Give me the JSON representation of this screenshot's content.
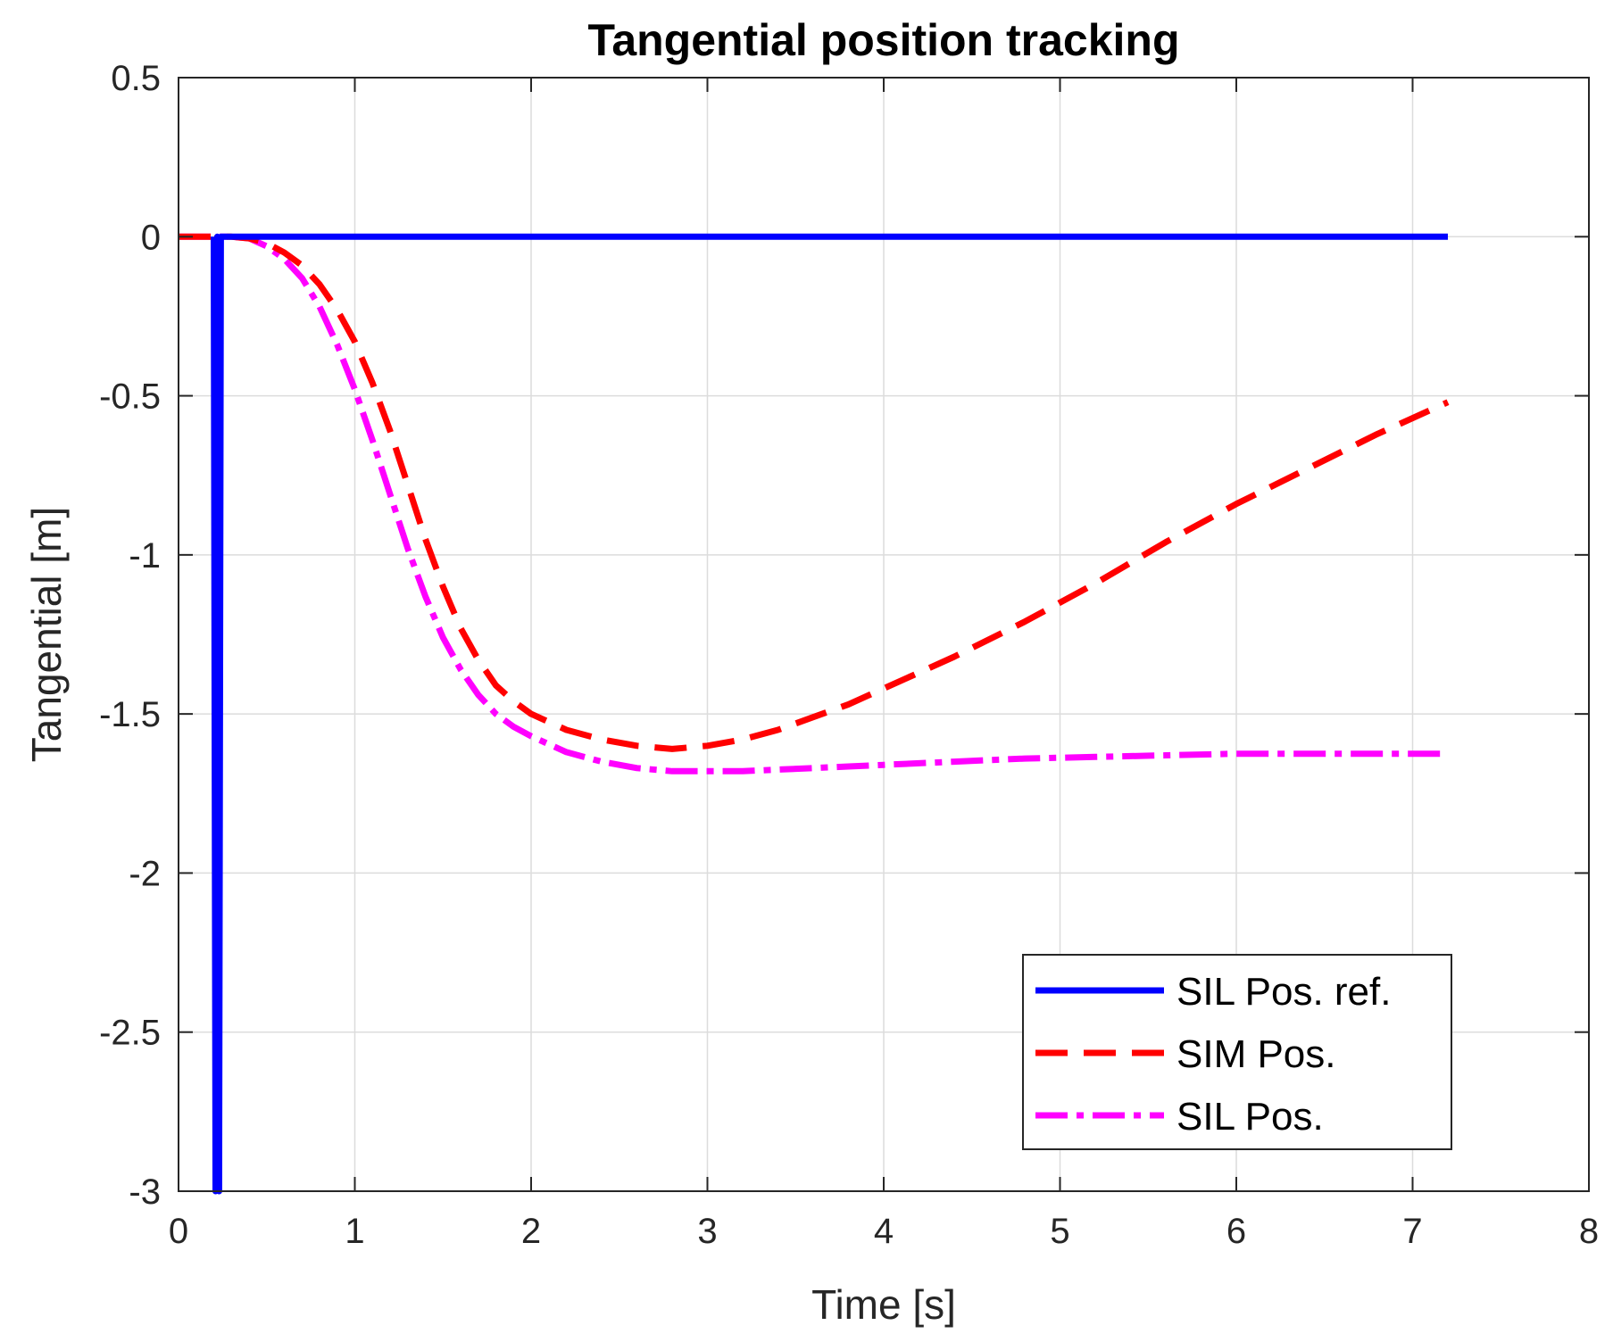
{
  "chart_data": {
    "type": "line",
    "title": "Tangential position tracking",
    "xlabel": "Time [s]",
    "ylabel": "Tangential [m]",
    "xlim": [
      0,
      8
    ],
    "ylim": [
      -3,
      0.5
    ],
    "xticks": [
      0,
      1,
      2,
      3,
      4,
      5,
      6,
      7,
      8
    ],
    "xtick_labels": [
      "0",
      "1",
      "2",
      "3",
      "4",
      "5",
      "6",
      "7",
      "8"
    ],
    "yticks": [
      0.5,
      0,
      -0.5,
      -1,
      -1.5,
      -2,
      -2.5,
      -3
    ],
    "ytick_labels": [
      "0.5",
      "0",
      "-0.5",
      "-1",
      "-1.5",
      "-2",
      "-2.5",
      "-3"
    ],
    "grid": true,
    "legend_position": "bottom-right",
    "series": [
      {
        "name": "SIL Pos. ref.",
        "style": "solid",
        "color": "#0000ff",
        "x": [
          0.2,
          0.21,
          0.22,
          0.23,
          0.24,
          7.2
        ],
        "y": [
          0,
          -3,
          0,
          -3,
          0,
          0
        ]
      },
      {
        "name": "SIM Pos.",
        "style": "dashed",
        "color": "#ff0000",
        "x": [
          0,
          0.3,
          0.4,
          0.5,
          0.6,
          0.7,
          0.8,
          0.9,
          1.0,
          1.1,
          1.2,
          1.3,
          1.4,
          1.5,
          1.6,
          1.7,
          1.8,
          1.9,
          2.0,
          2.2,
          2.4,
          2.6,
          2.8,
          3.0,
          3.2,
          3.4,
          3.6,
          3.8,
          4.0,
          4.4,
          4.8,
          5.2,
          5.6,
          6.0,
          6.4,
          6.8,
          7.2
        ],
        "y": [
          0,
          0,
          -0.005,
          -0.02,
          -0.05,
          -0.09,
          -0.15,
          -0.23,
          -0.33,
          -0.46,
          -0.61,
          -0.78,
          -0.95,
          -1.1,
          -1.23,
          -1.33,
          -1.41,
          -1.46,
          -1.5,
          -1.55,
          -1.58,
          -1.6,
          -1.61,
          -1.6,
          -1.58,
          -1.55,
          -1.51,
          -1.47,
          -1.42,
          -1.32,
          -1.21,
          -1.09,
          -0.96,
          -0.84,
          -0.73,
          -0.62,
          -0.52
        ]
      },
      {
        "name": "SIL Pos.",
        "style": "dashdot",
        "color": "#ff00ff",
        "x": [
          0,
          0.3,
          0.4,
          0.5,
          0.6,
          0.7,
          0.8,
          0.9,
          1.0,
          1.1,
          1.2,
          1.3,
          1.4,
          1.5,
          1.6,
          1.7,
          1.8,
          1.9,
          2.0,
          2.2,
          2.4,
          2.6,
          2.8,
          3.0,
          3.2,
          3.4,
          3.6,
          3.8,
          4.0,
          4.4,
          4.8,
          5.2,
          5.6,
          6.0,
          6.4,
          6.8,
          7.2
        ],
        "y": [
          0,
          0,
          -0.005,
          -0.03,
          -0.07,
          -0.13,
          -0.22,
          -0.34,
          -0.48,
          -0.64,
          -0.81,
          -0.98,
          -1.13,
          -1.26,
          -1.36,
          -1.44,
          -1.5,
          -1.54,
          -1.57,
          -1.62,
          -1.65,
          -1.67,
          -1.68,
          -1.68,
          -1.68,
          -1.675,
          -1.67,
          -1.665,
          -1.66,
          -1.65,
          -1.64,
          -1.635,
          -1.63,
          -1.625,
          -1.625,
          -1.625,
          -1.625
        ]
      }
    ]
  }
}
